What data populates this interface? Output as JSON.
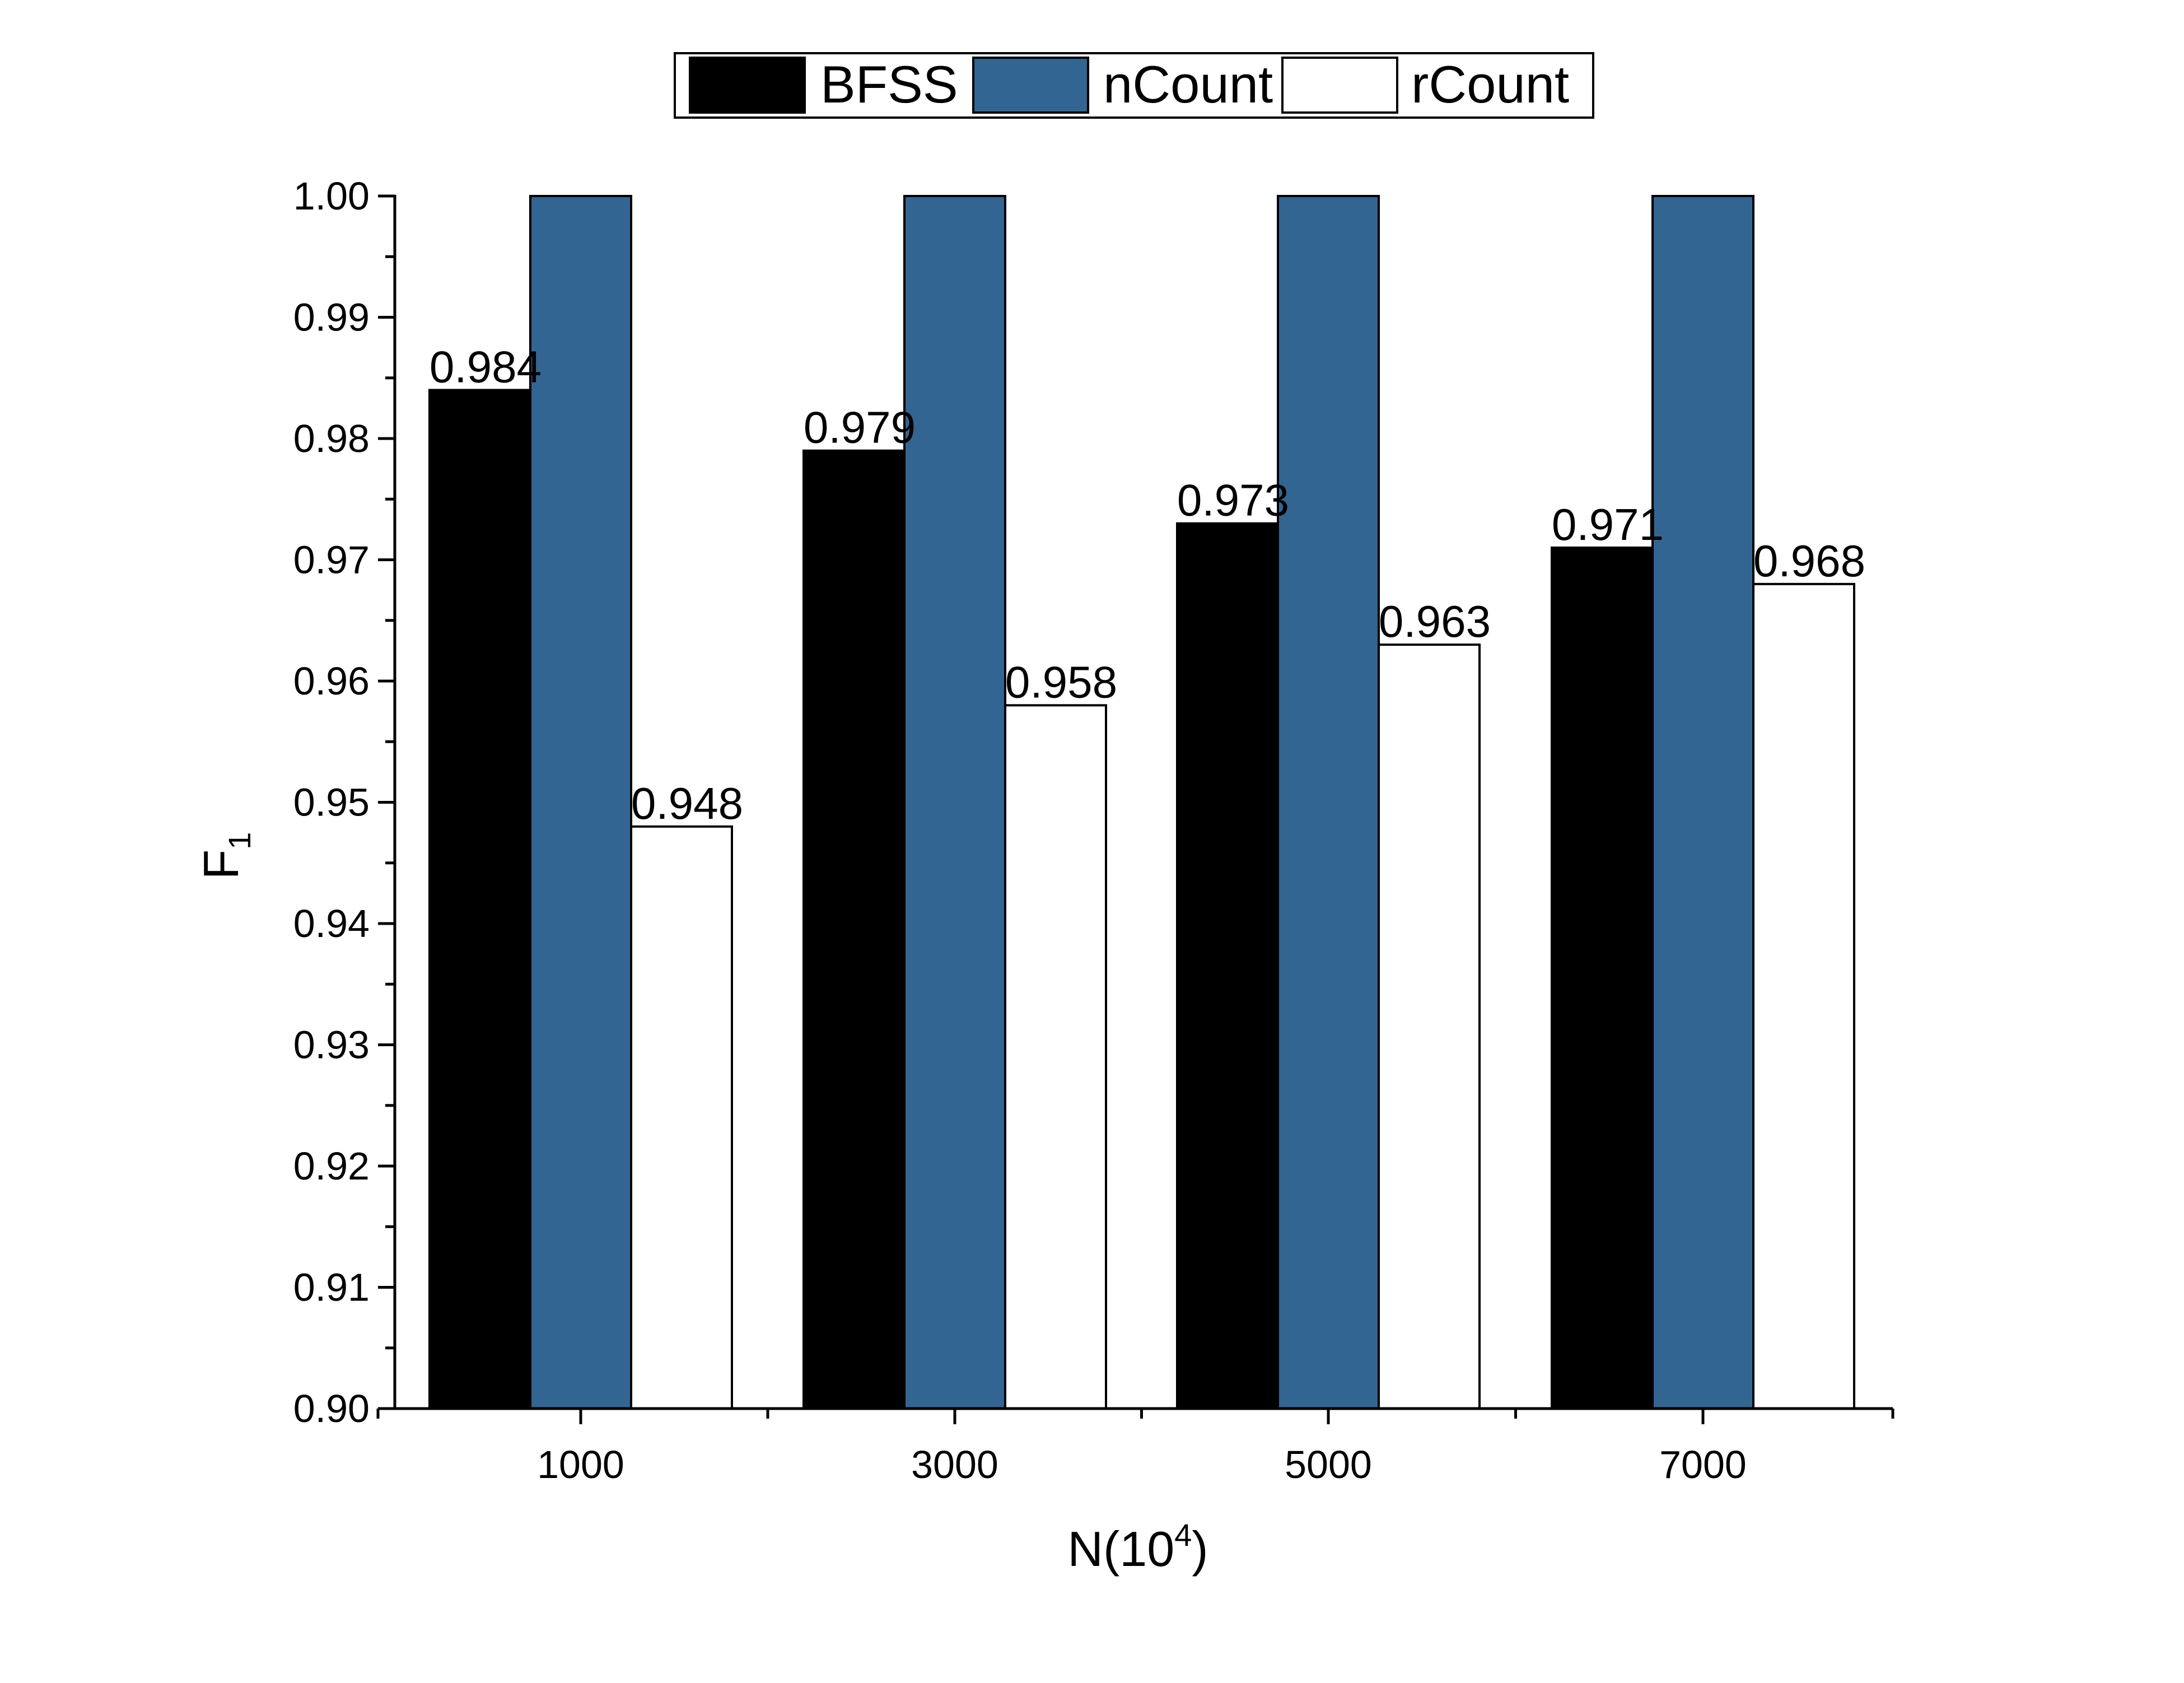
{
  "chart_data": {
    "type": "bar",
    "categories": [
      "1000",
      "3000",
      "5000",
      "7000"
    ],
    "series": [
      {
        "name": "BFSS",
        "values": [
          0.984,
          0.979,
          0.973,
          0.971
        ],
        "labels": [
          "0.984",
          "0.979",
          "0.973",
          "0.971"
        ],
        "color": "#000000"
      },
      {
        "name": "nCount",
        "values": [
          1.0,
          1.0,
          1.0,
          1.0
        ],
        "labels": [
          "",
          "",
          "",
          ""
        ],
        "color": "#336592"
      },
      {
        "name": "rCount",
        "values": [
          0.948,
          0.958,
          0.963,
          0.968
        ],
        "labels": [
          "0.948",
          "0.958",
          "0.963",
          "0.968"
        ],
        "color": "#ffffff"
      }
    ],
    "xlabel": {
      "main": "N(10",
      "sup": "4",
      "tail": ")"
    },
    "ylabel": {
      "main": "F",
      "sub": "1"
    },
    "ylim": [
      0.9,
      1.0
    ],
    "yticks": [
      "0.90",
      "0.91",
      "0.92",
      "0.93",
      "0.94",
      "0.95",
      "0.96",
      "0.97",
      "0.98",
      "0.99",
      "1.00"
    ],
    "legend_position": "top-center",
    "grid": false
  }
}
